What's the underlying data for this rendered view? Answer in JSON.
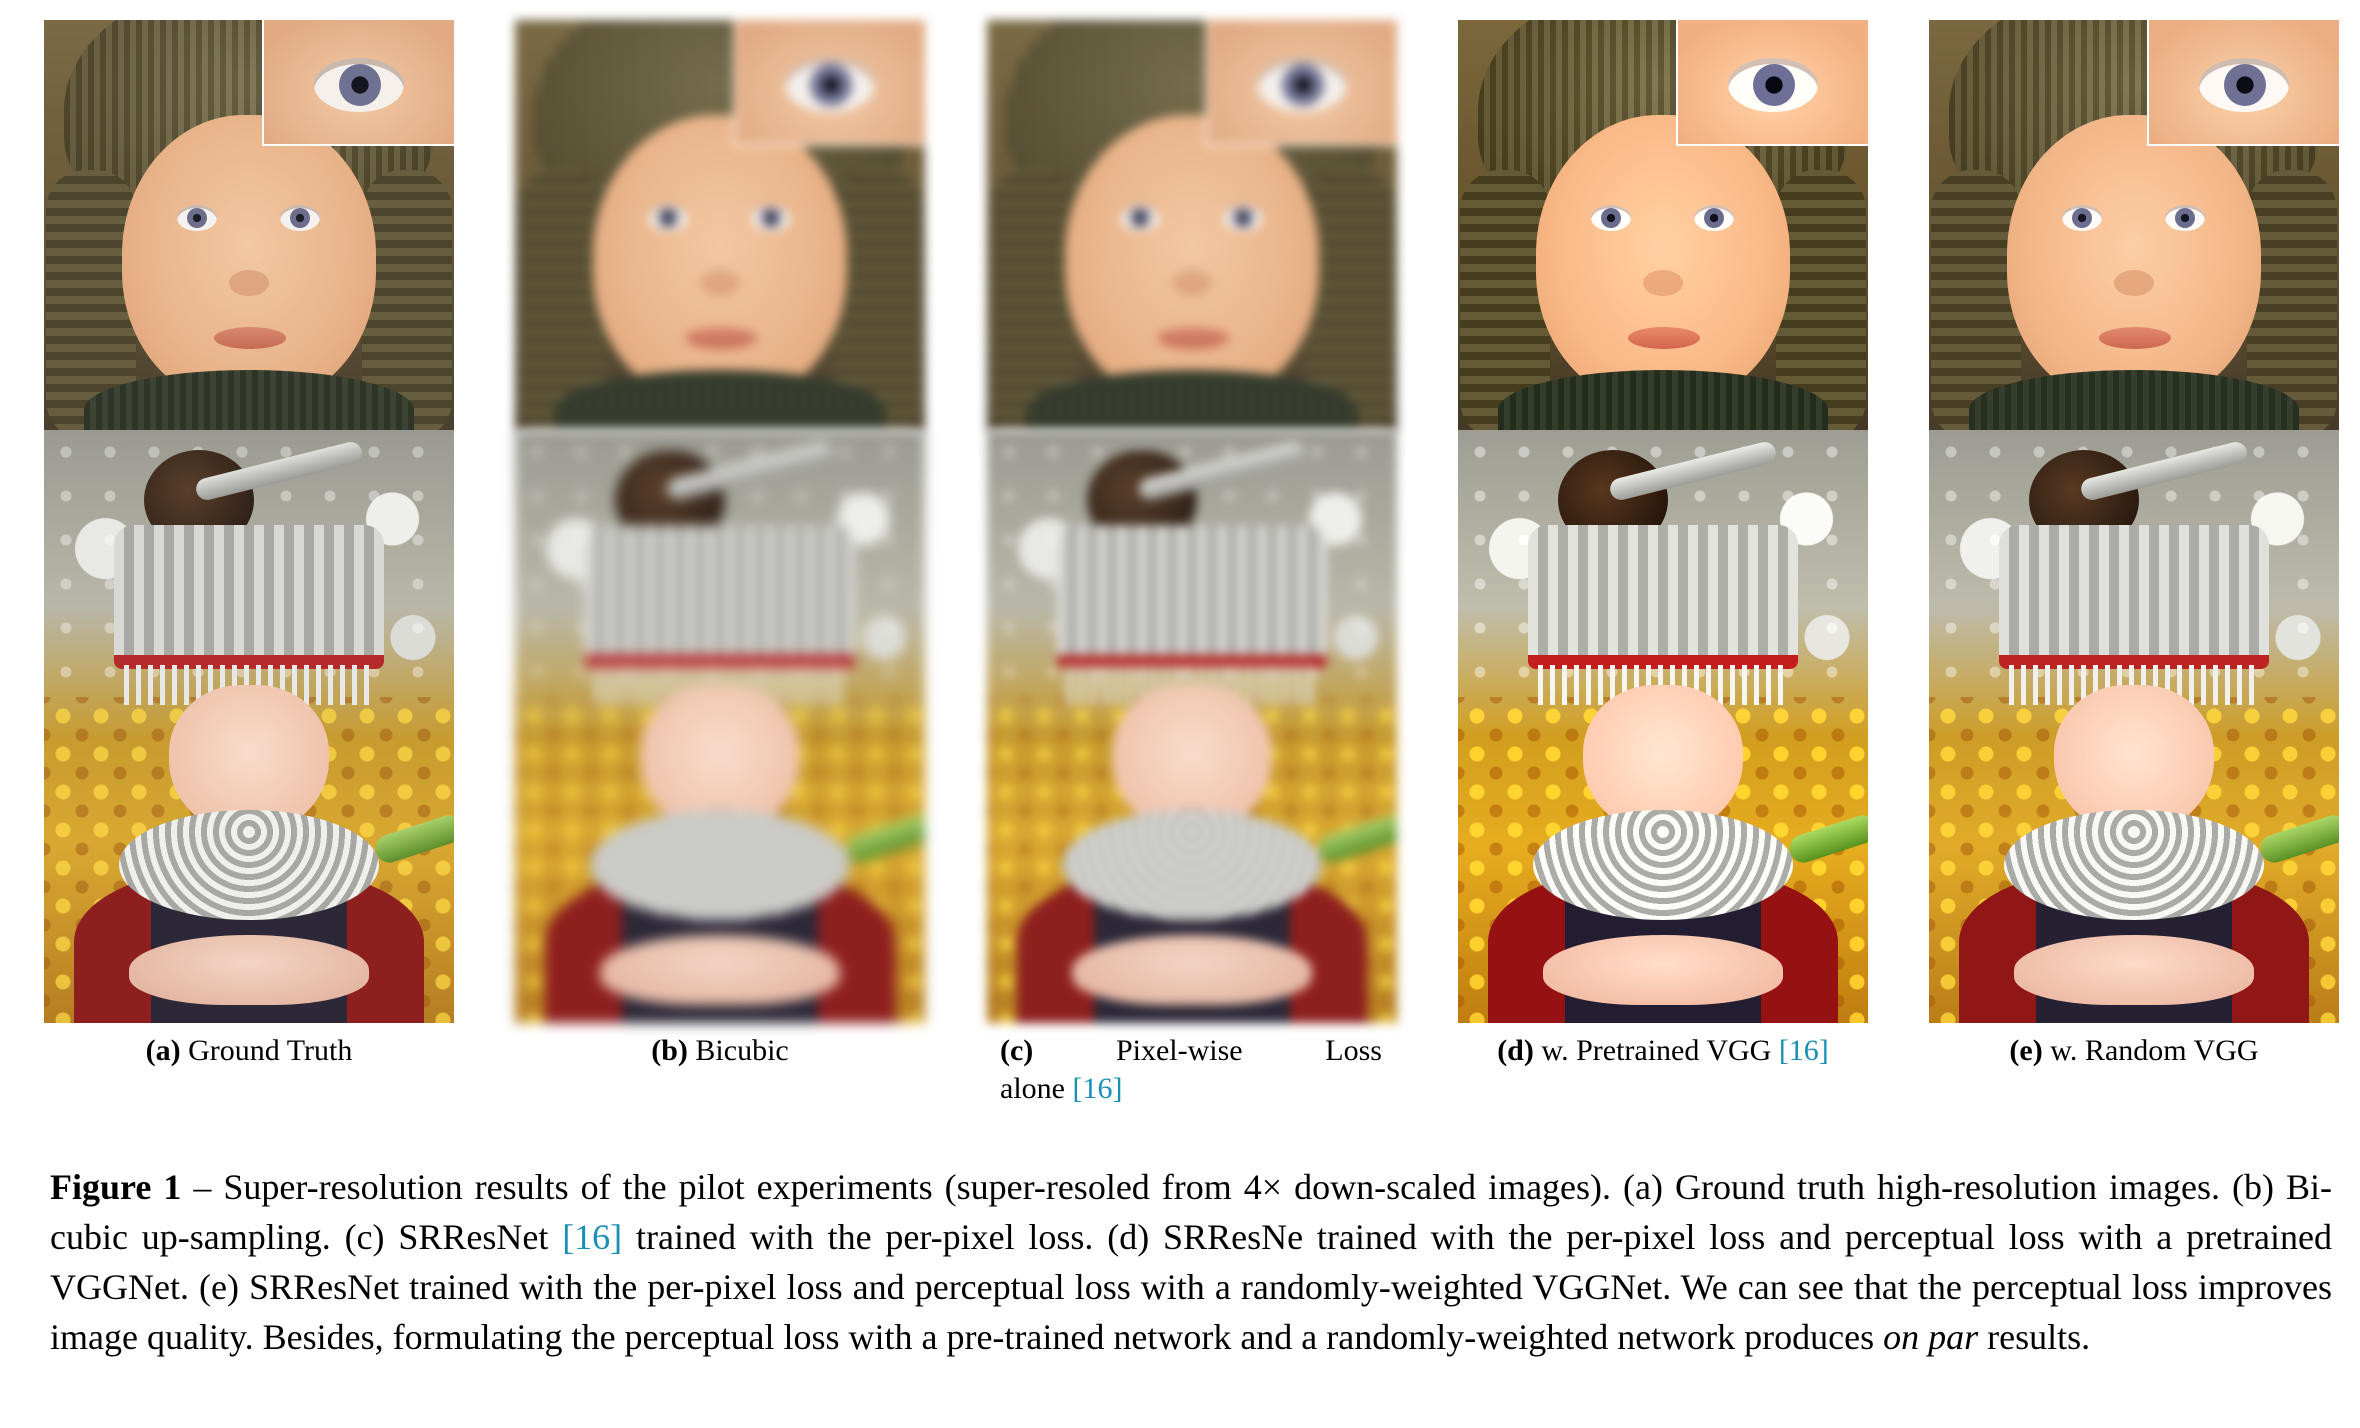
{
  "panels": [
    {
      "id": "a",
      "letter": "(a)",
      "label": "Ground Truth",
      "ref": ""
    },
    {
      "id": "b",
      "letter": "(b)",
      "label": "Bicubic",
      "ref": ""
    },
    {
      "id": "c",
      "letter": "(c)",
      "label_word1": "Pixel-wise",
      "label_word2": "Loss",
      "label_line2": "alone",
      "ref": "[16]"
    },
    {
      "id": "d",
      "letter": "(d)",
      "label": "w. Pretrained VGG",
      "ref": "[16]"
    },
    {
      "id": "e",
      "letter": "(e)",
      "label": "w. Random VGG",
      "ref": ""
    }
  ],
  "caption": {
    "label": "Figure 1",
    "dash": "–",
    "part1": "Super-resolution results of the pilot experiments (super-resoled from 4× down-scaled images). (a) Ground truth high-resolution images. (b) Bi-cubic up-sampling. (c) SRResNet",
    "ref": "[16]",
    "part2": "trained with the per-pixel loss. (d) SRResNe trained with the per-pixel loss and perceptual loss with a pretrained VGGNet. (e) SRResNet trained with the per-pixel loss and perceptual loss with a randomly-weighted VGGNet. We can see that the perceptual loss improves image quality. Besides, formulating the perceptual loss with a pre-trained network and a randomly-weighted network produces",
    "italic": "on par",
    "part3": "results."
  },
  "colors": {
    "reference_link": "#1a8fb5",
    "text": "#000000"
  }
}
